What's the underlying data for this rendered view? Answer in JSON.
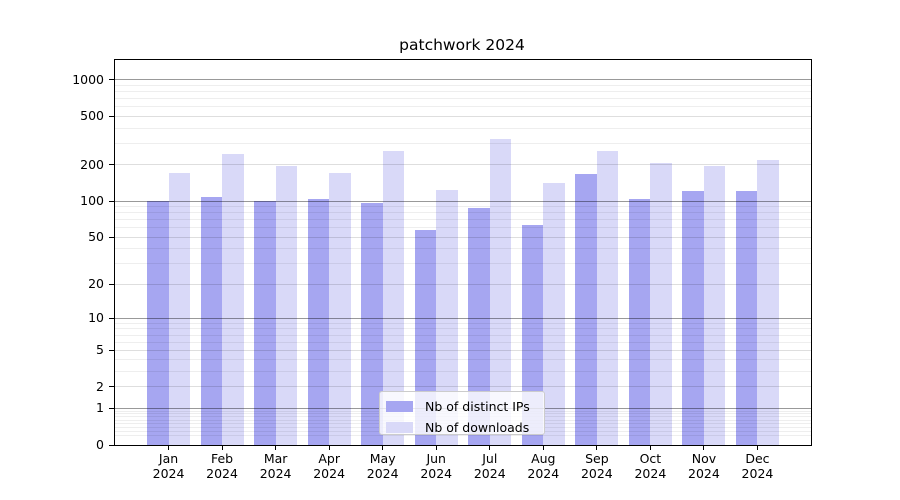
{
  "chart_data": {
    "type": "bar",
    "title": "patchwork 2024",
    "categories": [
      "Jan",
      "Feb",
      "Mar",
      "Apr",
      "May",
      "Jun",
      "Jul",
      "Aug",
      "Sep",
      "Oct",
      "Nov",
      "Dec"
    ],
    "year": "2024",
    "series": [
      {
        "name": "Nb of distinct IPs",
        "color": "#a6a6f1",
        "values": [
          100,
          109,
          100,
          104,
          96,
          57,
          87,
          63,
          167,
          104,
          121,
          121
        ]
      },
      {
        "name": "Nb of downloads",
        "color": "#d9d9f8",
        "values": [
          170,
          245,
          196,
          170,
          260,
          124,
          325,
          140,
          260,
          207,
          196,
          219
        ]
      }
    ],
    "yscale": "log1p",
    "yticks": [
      0,
      1,
      2,
      5,
      10,
      20,
      50,
      100,
      200,
      500,
      1000
    ],
    "ylim": [
      0,
      1455
    ],
    "grid": true,
    "legend_position": "lower center",
    "colors": {
      "axis": "#000000",
      "major_grid": "#999999",
      "minor_grid": "#e6e6e6",
      "background": "#ffffff"
    }
  }
}
